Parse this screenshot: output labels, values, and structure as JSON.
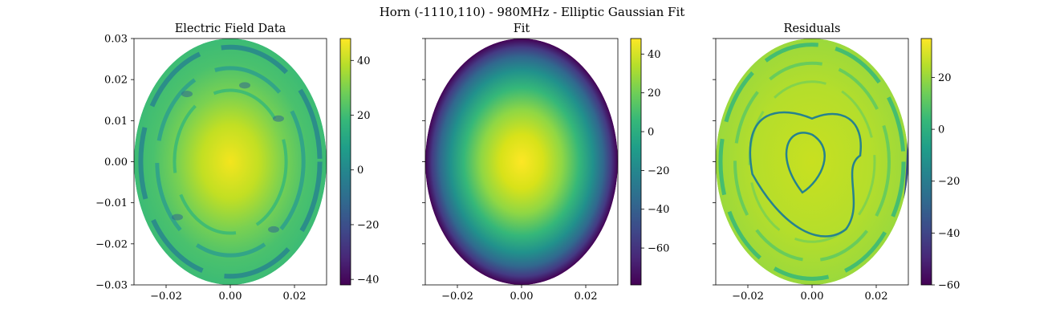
{
  "figure_title": "Horn (-1110,110) - 980MHz  - Elliptic Gaussian Fit",
  "chart_data": [
    {
      "type": "heatmap",
      "title": "Electric Field Data",
      "xlabel": "",
      "ylabel": "",
      "xlim": [
        -0.03,
        0.03
      ],
      "ylim": [
        -0.03,
        0.03
      ],
      "x_ticks": [
        -0.02,
        0.0,
        0.02
      ],
      "x_tick_labels": [
        "−0.02",
        "0.00",
        "0.02"
      ],
      "y_ticks": [
        0.03,
        0.02,
        0.01,
        0.0,
        -0.01,
        -0.02,
        -0.03
      ],
      "y_tick_labels": [
        "0.03",
        "0.02",
        "0.01",
        "0.00",
        "−0.01",
        "−0.02",
        "−0.03"
      ],
      "colormap": "viridis",
      "colorbar_range": [
        -42,
        48
      ],
      "colorbar_ticks": [
        40,
        20,
        0,
        -20,
        -40
      ],
      "colorbar_tick_labels": [
        "40",
        "20",
        "0",
        "−20",
        "−40"
      ],
      "grid": false
    },
    {
      "type": "heatmap",
      "title": "Fit",
      "xlabel": "",
      "ylabel": "",
      "xlim": [
        -0.03,
        0.03
      ],
      "ylim": [
        -0.03,
        0.03
      ],
      "x_ticks": [
        -0.02,
        0.0,
        0.02
      ],
      "x_tick_labels": [
        "−0.02",
        "0.00",
        "0.02"
      ],
      "y_ticks": [
        0.03,
        0.02,
        0.01,
        0.0,
        -0.01,
        -0.02,
        -0.03
      ],
      "y_tick_labels": [],
      "colormap": "viridis",
      "colorbar_range": [
        -79,
        48
      ],
      "colorbar_ticks": [
        40,
        20,
        0,
        -20,
        -40,
        -60
      ],
      "colorbar_tick_labels": [
        "40",
        "20",
        "0",
        "−20",
        "−40",
        "−60"
      ],
      "grid": false
    },
    {
      "type": "heatmap",
      "title": "Residuals",
      "xlabel": "",
      "ylabel": "",
      "xlim": [
        -0.03,
        0.03
      ],
      "ylim": [
        -0.03,
        0.03
      ],
      "x_ticks": [
        -0.02,
        0.0,
        0.02
      ],
      "x_tick_labels": [
        "−0.02",
        "0.00",
        "0.02"
      ],
      "y_ticks": [
        0.03,
        0.02,
        0.01,
        0.0,
        -0.01,
        -0.02,
        -0.03
      ],
      "y_tick_labels": [],
      "colormap": "viridis",
      "colorbar_range": [
        -60,
        35
      ],
      "colorbar_ticks": [
        20,
        0,
        -20,
        -40,
        -60
      ],
      "colorbar_tick_labels": [
        "20",
        "0",
        "−20",
        "−40",
        "−60"
      ],
      "grid": false
    }
  ]
}
